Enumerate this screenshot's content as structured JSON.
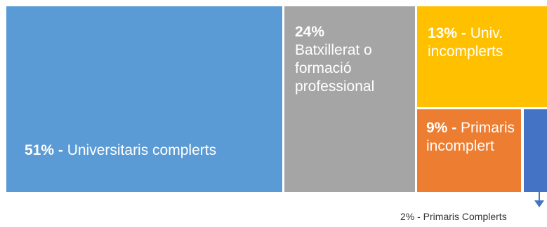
{
  "chart_data": {
    "type": "treemap",
    "series": [
      {
        "name": "Universitaris complerts",
        "label_pct": "51%",
        "label_sep": " -",
        "label_text": "Universitaris complerts",
        "value": 51,
        "color": "#5B9BD5"
      },
      {
        "name": "Batxillerat o formació professional",
        "label_pct": "24%",
        "label_sep": "",
        "label_text": "Batxillerat o formació professional",
        "value": 24,
        "color": "#A5A5A5"
      },
      {
        "name": "Univ. incomplerts",
        "label_pct": "13%",
        "label_sep": "  -",
        "label_text": "Univ. incomplerts",
        "value": 13,
        "color": "#FFC000"
      },
      {
        "name": "Primaris incomplert",
        "label_pct": "9%",
        "label_sep": "  -",
        "label_text": "Primaris incomplert",
        "value": 9,
        "color": "#ED7D31"
      },
      {
        "name": "Primaris Complerts",
        "label_pct": "2%",
        "label_sep": "  -",
        "label_text": "Primaris Complerts",
        "value": 2,
        "color": "#4472C4"
      }
    ],
    "external_label": "2%  - Primaris Complerts"
  }
}
